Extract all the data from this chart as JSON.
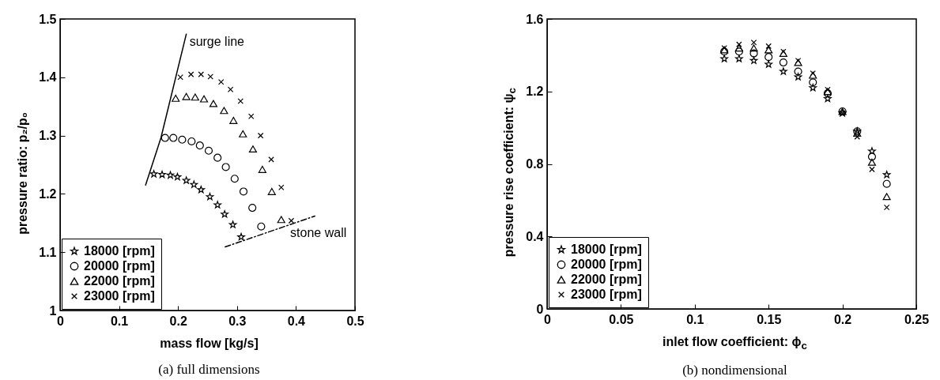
{
  "chart_data": [
    {
      "type": "scatter",
      "xlabel": "mass flow [kg/s]",
      "ylabel": "pressure ratio: p₂/p₀",
      "xlim": [
        0,
        0.5
      ],
      "ylim": [
        1,
        1.5
      ],
      "xticks": [
        0,
        0.1,
        0.2,
        0.3,
        0.4,
        0.5
      ],
      "yticks": [
        1,
        1.1,
        1.2,
        1.3,
        1.4,
        1.5
      ],
      "legend": "bottom left",
      "annotations": [
        "(a) full dimensions"
      ],
      "series": [
        {
          "name": "18000 [rpm]",
          "color": "#000000",
          "marker": "star",
          "x": [
            0.159,
            0.173,
            0.187,
            0.199,
            0.214,
            0.227,
            0.239,
            0.254,
            0.267,
            0.279,
            0.293,
            0.307
          ],
          "values": [
            1.234,
            1.233,
            1.232,
            1.229,
            1.223,
            1.216,
            1.207,
            1.195,
            1.181,
            1.165,
            1.147,
            1.126
          ]
        },
        {
          "name": "20000 [rpm]",
          "color": "#000000",
          "marker": "circle",
          "x": [
            0.178,
            0.192,
            0.207,
            0.223,
            0.237,
            0.252,
            0.267,
            0.281,
            0.296,
            0.311,
            0.326,
            0.341
          ],
          "values": [
            1.296,
            1.296,
            1.293,
            1.29,
            1.283,
            1.274,
            1.262,
            1.246,
            1.226,
            1.204,
            1.176,
            1.144
          ]
        },
        {
          "name": "22000 [rpm]",
          "color": "#000000",
          "marker": "triangle",
          "x": [
            0.196,
            0.214,
            0.229,
            0.244,
            0.26,
            0.278,
            0.294,
            0.31,
            0.327,
            0.343,
            0.359,
            0.375
          ],
          "values": [
            1.364,
            1.367,
            1.366,
            1.363,
            1.355,
            1.343,
            1.326,
            1.303,
            1.277,
            1.242,
            1.204,
            1.156
          ]
        },
        {
          "name": "23000 [rpm]",
          "color": "#000000",
          "marker": "cross",
          "x": [
            0.204,
            0.222,
            0.239,
            0.255,
            0.273,
            0.289,
            0.306,
            0.324,
            0.34,
            0.358,
            0.375,
            0.392
          ],
          "values": [
            1.4,
            1.405,
            1.405,
            1.401,
            1.392,
            1.379,
            1.359,
            1.333,
            1.3,
            1.259,
            1.211,
            1.154
          ]
        },
        {
          "name": "surge line",
          "type": "line",
          "color": "#000000",
          "line_style": "solid",
          "x": [
            0.145,
            0.171,
            0.214
          ],
          "values": [
            1.215,
            1.296,
            1.474
          ]
        },
        {
          "name": "stone wall",
          "type": "line",
          "color": "#000000",
          "line_style": "dashed",
          "x": [
            0.28,
            0.432
          ],
          "values": [
            1.109,
            1.162
          ]
        }
      ]
    },
    {
      "type": "scatter",
      "xlabel": "inlet flow coefficient: ϕ$_{c}$",
      "ylabel": "pressure rise coefficient: ψ$_{c}$",
      "xlim": [
        0,
        0.25
      ],
      "ylim": [
        0,
        1.6
      ],
      "xticks": [
        0,
        0.05,
        0.1,
        0.15,
        0.2,
        0.25
      ],
      "yticks": [
        0,
        0.4,
        0.8,
        1.2,
        1.6
      ],
      "legend": "bottom left",
      "annotations": [
        "(b) nondimensional"
      ],
      "series": [
        {
          "name": "18000 [rpm]",
          "color": "#000000",
          "marker": "star",
          "x": [
            0.12,
            0.13,
            0.14,
            0.15,
            0.16,
            0.17,
            0.18,
            0.19,
            0.2,
            0.21,
            0.22,
            0.23
          ],
          "values": [
            1.38,
            1.38,
            1.37,
            1.35,
            1.31,
            1.28,
            1.22,
            1.16,
            1.08,
            0.98,
            0.87,
            0.74
          ]
        },
        {
          "name": "20000 [rpm]",
          "color": "#000000",
          "marker": "circle",
          "x": [
            0.12,
            0.13,
            0.14,
            0.15,
            0.16,
            0.17,
            0.18,
            0.19,
            0.2,
            0.21,
            0.22,
            0.23
          ],
          "values": [
            1.42,
            1.42,
            1.41,
            1.39,
            1.36,
            1.31,
            1.25,
            1.19,
            1.09,
            0.98,
            0.84,
            0.69
          ]
        },
        {
          "name": "22000 [rpm]",
          "color": "#000000",
          "marker": "triangle",
          "x": [
            0.12,
            0.13,
            0.14,
            0.15,
            0.16,
            0.17,
            0.18,
            0.19,
            0.2,
            0.21,
            0.22,
            0.23
          ],
          "values": [
            1.43,
            1.44,
            1.44,
            1.43,
            1.41,
            1.36,
            1.29,
            1.2,
            1.09,
            0.97,
            0.81,
            0.62
          ]
        },
        {
          "name": "23000 [rpm]",
          "color": "#000000",
          "marker": "cross",
          "x": [
            0.12,
            0.13,
            0.14,
            0.15,
            0.16,
            0.17,
            0.18,
            0.19,
            0.2,
            0.21,
            0.22,
            0.23
          ],
          "values": [
            1.44,
            1.46,
            1.47,
            1.45,
            1.42,
            1.37,
            1.3,
            1.21,
            1.08,
            0.95,
            0.77,
            0.56
          ]
        }
      ]
    }
  ]
}
